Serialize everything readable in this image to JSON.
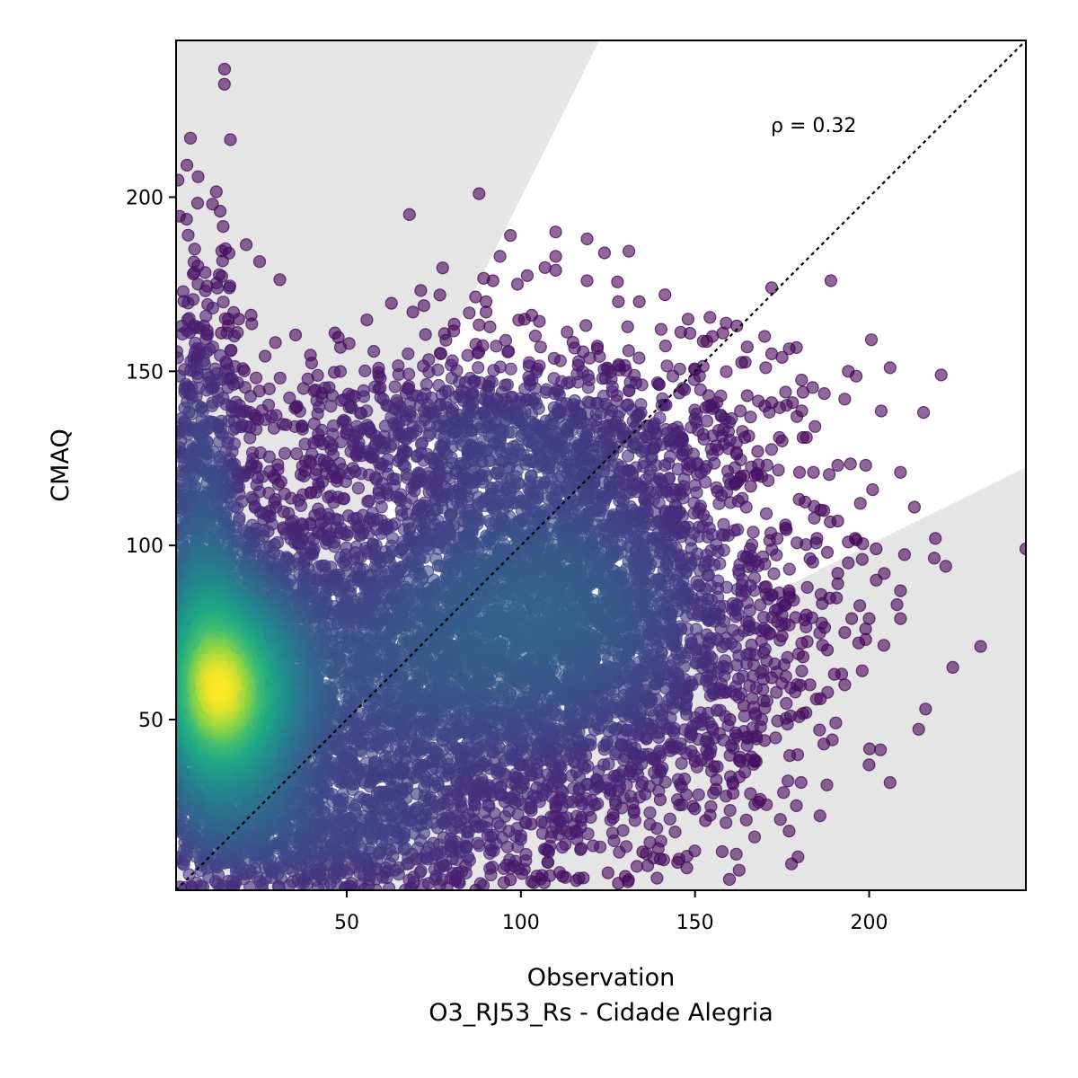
{
  "chart_data": {
    "type": "scatter",
    "title": "",
    "xlabel": "Observation",
    "xlabel_sub": "O3_RJ53_Rs - Cidade Alegria",
    "ylabel": "CMAQ",
    "xlim": [
      1,
      245
    ],
    "ylim": [
      1,
      245
    ],
    "x_ticks": [
      50,
      100,
      150,
      200
    ],
    "y_ticks": [
      50,
      100,
      150,
      200
    ],
    "annotation": "ρ = 0.32",
    "grid": false,
    "legend": "none",
    "colormap": "viridis",
    "colors": {
      "low_density": "#440154",
      "mid_density": "#21918c",
      "high_density": "#fde725",
      "band_fill": "#e5e5e5",
      "identity_line": "#000000"
    },
    "reference_line": {
      "type": "identity",
      "style": "dotted"
    },
    "shaded_bands": [
      {
        "name": "upper",
        "slope": 2.0
      },
      {
        "name": "lower",
        "slope": 0.5
      }
    ],
    "density_clusters": [
      {
        "cx": 15,
        "cy": 57,
        "sx": 14,
        "sy": 22,
        "n": 3200
      },
      {
        "cx": 60,
        "cy": 62,
        "sx": 35,
        "sy": 28,
        "n": 2600
      },
      {
        "cx": 105,
        "cy": 90,
        "sx": 30,
        "sy": 28,
        "n": 2200
      },
      {
        "cx": 8,
        "cy": 100,
        "sx": 8,
        "sy": 40,
        "n": 1000
      },
      {
        "cx": 130,
        "cy": 70,
        "sx": 28,
        "sy": 30,
        "n": 1200
      },
      {
        "cx": 90,
        "cy": 135,
        "sx": 40,
        "sy": 12,
        "n": 700
      },
      {
        "cx": 40,
        "cy": 15,
        "sx": 35,
        "sy": 12,
        "n": 800
      }
    ],
    "outliers": [
      [
        88,
        201
      ],
      [
        68,
        195
      ],
      [
        97,
        189
      ],
      [
        110,
        190
      ],
      [
        119,
        188
      ],
      [
        124,
        184
      ],
      [
        94,
        183
      ],
      [
        110,
        183
      ],
      [
        92,
        176
      ],
      [
        99,
        175
      ],
      [
        119,
        176
      ],
      [
        110,
        179
      ],
      [
        189,
        176
      ],
      [
        172,
        174
      ],
      [
        128,
        170
      ],
      [
        134,
        170
      ],
      [
        90,
        170
      ],
      [
        90,
        167
      ],
      [
        69,
        167
      ],
      [
        148,
        165
      ],
      [
        16,
        165
      ],
      [
        19,
        165
      ],
      [
        16,
        163
      ],
      [
        14,
        161
      ],
      [
        170,
        160
      ],
      [
        162,
        163
      ],
      [
        155,
        160
      ],
      [
        158,
        161
      ],
      [
        165,
        157
      ],
      [
        172,
        155
      ],
      [
        175,
        154
      ],
      [
        206,
        151
      ],
      [
        194,
        150
      ],
      [
        181,
        144
      ],
      [
        193,
        142
      ],
      [
        178,
        141
      ],
      [
        172,
        141
      ],
      [
        165,
        143
      ],
      [
        181,
        131
      ],
      [
        182,
        131
      ],
      [
        191,
        123
      ],
      [
        199,
        123
      ],
      [
        209,
        121
      ],
      [
        201,
        116
      ],
      [
        213,
        111
      ],
      [
        196,
        102
      ],
      [
        191,
        107
      ],
      [
        194,
        101
      ],
      [
        202,
        99
      ],
      [
        198,
        96
      ],
      [
        187,
        110
      ],
      [
        185,
        102
      ],
      [
        191,
        92
      ],
      [
        191,
        89
      ],
      [
        194,
        95
      ],
      [
        209,
        87
      ],
      [
        208,
        83
      ],
      [
        209,
        79
      ],
      [
        219,
        102
      ],
      [
        222,
        94
      ],
      [
        232,
        71
      ],
      [
        224,
        65
      ],
      [
        200,
        79
      ],
      [
        199,
        73
      ],
      [
        197,
        72
      ],
      [
        198,
        64
      ],
      [
        193,
        75
      ],
      [
        195,
        79
      ],
      [
        188,
        70
      ],
      [
        183,
        60
      ],
      [
        186,
        56
      ],
      [
        193,
        60
      ],
      [
        190,
        63
      ],
      [
        181,
        68
      ],
      [
        175,
        74
      ],
      [
        176,
        83
      ],
      [
        170,
        88
      ],
      [
        177,
        87
      ],
      [
        170,
        44
      ],
      [
        177,
        18
      ],
      [
        187,
        43
      ],
      [
        245,
        99
      ],
      [
        164,
        54
      ],
      [
        165,
        45
      ],
      [
        163,
        38
      ],
      [
        153,
        21
      ],
      [
        140,
        27
      ],
      [
        135,
        12
      ],
      [
        140,
        10
      ],
      [
        125,
        6
      ],
      [
        128,
        3
      ],
      [
        112,
        5
      ],
      [
        108,
        12
      ],
      [
        82,
        6
      ],
      [
        97,
        4
      ],
      [
        87,
        1
      ],
      [
        70,
        10
      ],
      [
        110,
        25
      ],
      [
        103,
        20
      ],
      [
        145,
        9
      ],
      [
        130,
        5
      ],
      [
        146,
        76
      ],
      [
        150,
        38
      ],
      [
        156,
        30
      ],
      [
        160,
        50
      ],
      [
        172,
        62
      ],
      [
        182,
        80
      ],
      [
        188,
        98
      ],
      [
        176,
        105
      ],
      [
        180,
        121
      ],
      [
        184,
        121
      ],
      [
        166,
        117
      ],
      [
        164,
        120
      ],
      [
        168,
        127
      ],
      [
        175,
        130
      ]
    ]
  }
}
